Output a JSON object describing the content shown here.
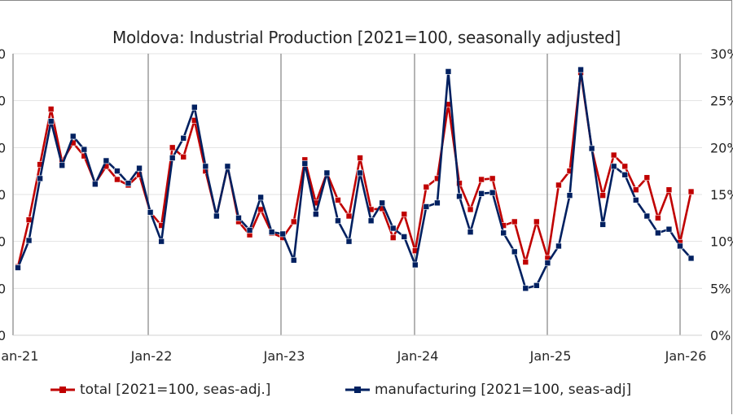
{
  "chart_data": {
    "type": "line",
    "title": "Moldova: Industrial Production [2021=100, seasonally adjusted]",
    "x_tick_labels": [
      "Jan-21",
      "Jan-22",
      "Jan-23",
      "Jan-24",
      "Jan-25",
      "Jan-26"
    ],
    "x_range": [
      "Jan-21",
      "Feb-26"
    ],
    "y_right_tick_labels": [
      "0%",
      "5%",
      "10%",
      "15%",
      "20%",
      "25%",
      "30%"
    ],
    "y_right_range": [
      0,
      30
    ],
    "y_left_tick_labels_visible": [
      "0",
      "0",
      "0",
      "0",
      "0",
      "0",
      "0",
      "0"
    ],
    "grid": true,
    "legend_position": "bottom",
    "series": [
      {
        "name": "total [2021=100, seas-adj.]",
        "color": "#c00000",
        "values": [
          7.3,
          12.3,
          18.2,
          24.1,
          18.5,
          20.5,
          19.1,
          16.2,
          18.0,
          16.6,
          16.0,
          17.1,
          13.1,
          11.7,
          20.0,
          19.0,
          22.9,
          17.5,
          12.7,
          18.0,
          12.1,
          10.7,
          13.4,
          10.9,
          10.4,
          12.1,
          18.7,
          14.1,
          17.3,
          14.4,
          12.7,
          18.9,
          13.4,
          13.5,
          10.4,
          12.9,
          9.0,
          15.8,
          16.7,
          24.6,
          16.2,
          13.4,
          16.6,
          16.7,
          11.7,
          12.1,
          7.8,
          12.1,
          8.2,
          16.0,
          17.5,
          28.0,
          19.9,
          14.9,
          19.2,
          18.0,
          15.5,
          16.8,
          12.5,
          15.5,
          9.9,
          15.3
        ]
      },
      {
        "name": "manufacturing [2021=100, seas-adj]",
        "color": "#002060",
        "values": [
          7.2,
          10.1,
          16.7,
          22.8,
          18.1,
          21.2,
          19.8,
          16.1,
          18.6,
          17.5,
          16.2,
          17.8,
          13.1,
          10.0,
          18.9,
          21.0,
          24.3,
          18.0,
          12.7,
          18.0,
          12.5,
          11.2,
          14.7,
          11.0,
          10.8,
          8.0,
          18.3,
          12.9,
          17.3,
          12.2,
          10.0,
          17.3,
          12.2,
          14.1,
          11.4,
          10.5,
          7.5,
          13.7,
          14.1,
          28.1,
          14.8,
          11.0,
          15.1,
          15.2,
          10.9,
          8.9,
          5.0,
          5.3,
          7.7,
          9.5,
          14.9,
          28.3,
          19.9,
          11.8,
          18.0,
          17.1,
          14.4,
          12.7,
          10.9,
          11.3,
          9.5,
          8.2
        ]
      }
    ]
  }
}
